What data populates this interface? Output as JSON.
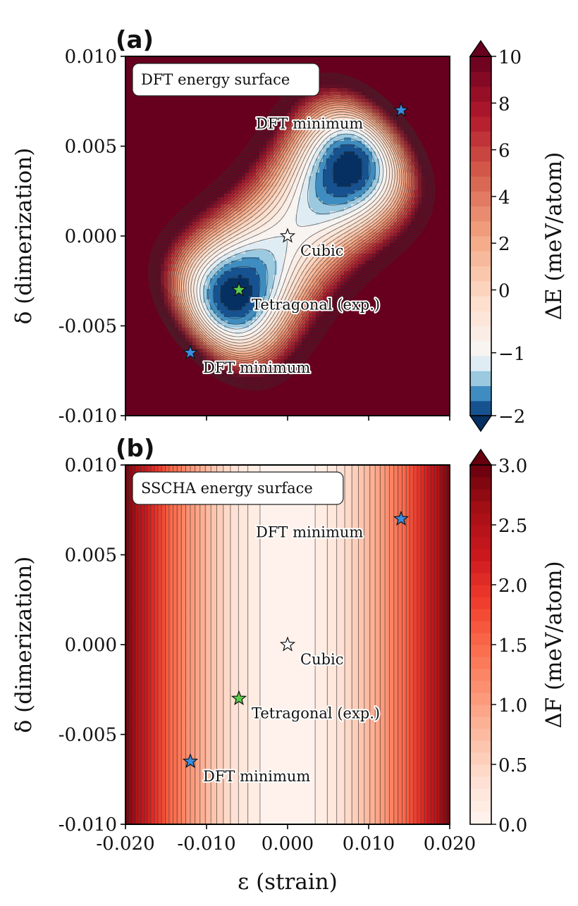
{
  "chart_data": [
    {
      "type": "heatmap",
      "panel_label": "(a)",
      "box_title": "DFT energy surface",
      "xlabel": "ε (strain)",
      "ylabel": "δ (dimerization)",
      "xlim": [
        -0.02,
        0.02
      ],
      "ylim": [
        -0.01,
        0.01
      ],
      "x_ticks": [
        -0.02,
        -0.01,
        0.0,
        0.01,
        0.02
      ],
      "y_ticks": [
        -0.01,
        -0.005,
        0.0,
        0.005,
        0.01
      ],
      "y_tick_labels": [
        "-0.010",
        "-0.005",
        "0.000",
        "0.005",
        "0.010"
      ],
      "colorbar": {
        "label": "ΔE (meV/atom)",
        "range": [
          -2,
          10
        ],
        "ticks": [
          -2,
          -1,
          0,
          2,
          4,
          6,
          8,
          10
        ],
        "tick_labels": [
          "−2",
          "−1",
          "0",
          "2",
          "4",
          "6",
          "8",
          "10"
        ],
        "extend": "both",
        "colormap": "RdBu_r"
      },
      "points": [
        {
          "label": "DFT minimum",
          "x": 0.014,
          "y": 0.007,
          "color": "#3a8de0"
        },
        {
          "label": "Cubic",
          "x": 0.0,
          "y": 0.0,
          "color": "#ffffff"
        },
        {
          "label": "Tetragonal (exp.)",
          "x": -0.006,
          "y": -0.003,
          "color": "#5ccc4c"
        },
        {
          "label": "DFT minimum",
          "x": -0.012,
          "y": -0.0065,
          "color": "#3a8de0"
        }
      ]
    },
    {
      "type": "heatmap",
      "panel_label": "(b)",
      "box_title": "SSCHA energy surface",
      "xlabel": "ε (strain)",
      "ylabel": "δ (dimerization)",
      "xlim": [
        -0.02,
        0.02
      ],
      "ylim": [
        -0.01,
        0.01
      ],
      "x_ticks": [
        -0.02,
        -0.01,
        0.0,
        0.01,
        0.02
      ],
      "x_tick_labels": [
        "-0.020",
        "-0.010",
        "0.000",
        "0.010",
        "0.020"
      ],
      "y_ticks": [
        -0.01,
        -0.005,
        0.0,
        0.005,
        0.01
      ],
      "y_tick_labels": [
        "-0.010",
        "-0.005",
        "0.000",
        "0.005",
        "0.010"
      ],
      "colorbar": {
        "label": "ΔF (meV/atom)",
        "range": [
          0,
          3
        ],
        "ticks": [
          0,
          0.5,
          1,
          1.5,
          2,
          2.5,
          3
        ],
        "tick_labels": [
          "0.0",
          "0.5",
          "1.0",
          "1.5",
          "2.0",
          "2.5",
          "3.0"
        ],
        "extend": "max",
        "colormap": "Reds"
      },
      "points": [
        {
          "label": "DFT minimum",
          "x": 0.014,
          "y": 0.007,
          "color": "#3a8de0"
        },
        {
          "label": "Cubic",
          "x": 0.0,
          "y": 0.0,
          "color": "#ffffff"
        },
        {
          "label": "Tetragonal (exp.)",
          "x": -0.006,
          "y": -0.003,
          "color": "#5ccc4c"
        },
        {
          "label": "DFT minimum",
          "x": -0.012,
          "y": -0.0065,
          "color": "#3a8de0"
        }
      ]
    }
  ]
}
